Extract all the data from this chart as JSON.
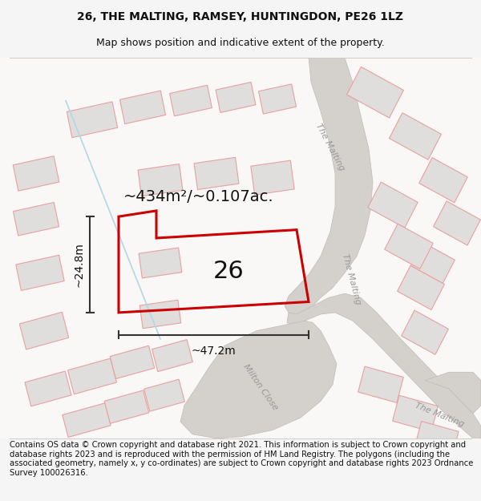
{
  "title": "26, THE MALTING, RAMSEY, HUNTINGDON, PE26 1LZ",
  "subtitle": "Map shows position and indicative extent of the property.",
  "footer": "Contains OS data © Crown copyright and database right 2021. This information is subject to Crown copyright and database rights 2023 and is reproduced with the permission of HM Land Registry. The polygons (including the associated geometry, namely x, y co-ordinates) are subject to Crown copyright and database rights 2023 Ordnance Survey 100026316.",
  "area_label": "~434m²/~0.107ac.",
  "width_label": "~47.2m",
  "height_label": "~24.8m",
  "plot_number": "26",
  "bg_color": "#f5f5f5",
  "map_bg": "#ffffff",
  "road_color": "#d4d0cc",
  "road_edge": "#c0bcb8",
  "block_fill": "#e0dedd",
  "block_edge": "#e8a0a0",
  "plot_edge": "#cc0000",
  "blue_line": "#b0d8e8",
  "street_label_color": "#999999",
  "title_fontsize": 10,
  "subtitle_fontsize": 9,
  "footer_fontsize": 7.2,
  "area_fontsize": 14,
  "plot_num_fontsize": 22,
  "dim_fontsize": 10,
  "street_fontsize": 8
}
